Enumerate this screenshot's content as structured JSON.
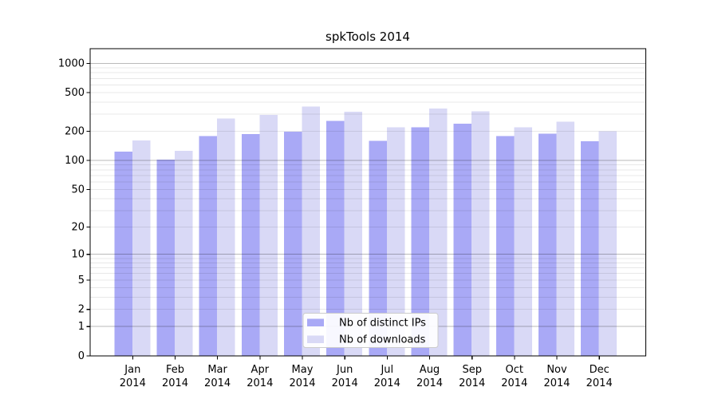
{
  "chart_data": {
    "type": "bar",
    "title": "spkTools 2014",
    "categories": [
      "Jan",
      "Feb",
      "Mar",
      "Apr",
      "May",
      "Jun",
      "Jul",
      "Aug",
      "Sep",
      "Oct",
      "Nov",
      "Dec"
    ],
    "category_year": "2014",
    "series": [
      {
        "name": "Nb of distinct IPs",
        "color": "#a9a9f6",
        "values": [
          123,
          102,
          178,
          188,
          198,
          255,
          159,
          221,
          240,
          178,
          189,
          158
        ]
      },
      {
        "name": "Nb of downloads",
        "color": "#d9d9f6",
        "values": [
          161,
          126,
          270,
          295,
          360,
          319,
          221,
          344,
          322,
          221,
          251,
          201
        ]
      }
    ],
    "y_scale": "log(1+y)",
    "y_ticks": [
      0,
      1,
      2,
      5,
      10,
      20,
      50,
      100,
      200,
      500,
      1000
    ],
    "y_major_gridlines": [
      1,
      10,
      100,
      1000
    ],
    "ylim": [
      0,
      1410
    ],
    "xlabel": "",
    "ylabel": "",
    "grid": "horizontal major and minor",
    "legend_position": "lower center inside plot"
  },
  "colors": {
    "bar_distinct_ips": "#a9a9f6",
    "bar_downloads": "#d9d9f6",
    "grid_major": "#bdbdbd",
    "grid_minor": "#e8e8e8",
    "axis": "#000000",
    "text": "#000000",
    "legend_border": "#cccccc",
    "legend_background": "#ffffff",
    "figure_background": "#ffffff"
  }
}
